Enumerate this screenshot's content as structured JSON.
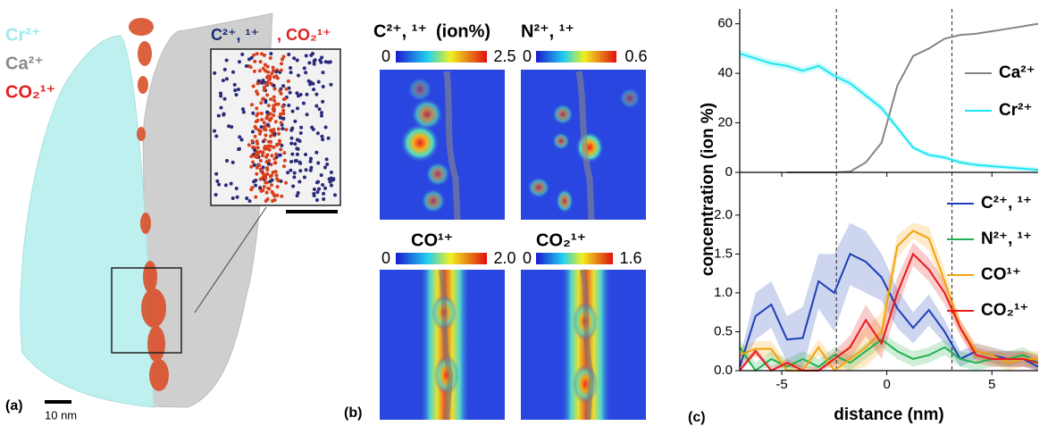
{
  "panel_a": {
    "labels": [
      "Cr²⁺",
      "Ca²⁺",
      "CO₂¹⁺"
    ],
    "inset_title": [
      "C²⁺, ¹⁺",
      ", CO₂¹⁺"
    ],
    "scale_bar": "10 nm",
    "panel_label": "(a)"
  },
  "panel_b": {
    "panel_label": "(b)",
    "unit": "(ion%)",
    "maps": [
      {
        "title": "C²⁺, ¹⁺",
        "cbar": [
          0,
          2.5
        ]
      },
      {
        "title": "N²⁺, ¹⁺",
        "cbar": [
          0,
          0.6
        ]
      },
      {
        "title": "CO¹⁺",
        "cbar": [
          0,
          {
            "value": 2,
            "label": "2.0"
          }
        ]
      },
      {
        "title": "CO₂¹⁺",
        "cbar": [
          0,
          1.6
        ]
      }
    ]
  },
  "chart_data": [
    {
      "type": "line",
      "x": [
        -7,
        -6.25,
        -5.5,
        -4.75,
        -4,
        -3.25,
        -2.5,
        -1.75,
        -1,
        -0.25,
        0.5,
        1.25,
        2,
        2.75,
        3.5,
        4.25,
        5,
        5.75,
        6.5,
        7.2
      ],
      "xlim": [
        -7,
        7.2
      ],
      "xticks": [
        -5,
        0,
        5
      ],
      "ylim": [
        0,
        66
      ],
      "yticks": [
        0,
        20,
        40,
        60
      ],
      "vlines": [
        -2.4,
        3.1
      ],
      "legend": "upper right",
      "series": [
        {
          "name": "Ca²⁺",
          "color": "#858585",
          "values": [
            null,
            null,
            null,
            0,
            0,
            0,
            0,
            0.3,
            4,
            12,
            35,
            47,
            50,
            54,
            55.5,
            56,
            57,
            58,
            59,
            60
          ]
        },
        {
          "name": "Cr²⁺",
          "color": "#1ee6f2",
          "values": [
            48,
            46,
            44,
            43,
            41,
            43,
            39,
            36,
            31,
            26,
            18,
            10,
            7,
            6,
            4,
            3,
            2.5,
            2,
            1.5,
            1
          ],
          "error": [
            1.5,
            1.5,
            1.5,
            1.5,
            1.5,
            1.5,
            1.5,
            1.5,
            1.5,
            1.5,
            1.5,
            1,
            1,
            1,
            1,
            1,
            1,
            1,
            1,
            1
          ]
        }
      ]
    },
    {
      "type": "line",
      "x": [
        -7,
        -6.25,
        -5.5,
        -4.75,
        -4,
        -3.25,
        -2.5,
        -1.75,
        -1,
        -0.25,
        0.5,
        1.25,
        2,
        2.75,
        3.5,
        4.25,
        5,
        5.75,
        6.5,
        7.2
      ],
      "xlim": [
        -7,
        7.2
      ],
      "xticks": [
        -5,
        0,
        5
      ],
      "ylim": [
        0,
        2.55
      ],
      "yticks": [
        {
          "value": 0,
          "label": "0.0"
        },
        {
          "value": 0.5,
          "label": "0.5"
        },
        {
          "value": 1,
          "label": "1.0"
        },
        {
          "value": 1.5,
          "label": "1.5"
        },
        {
          "value": 2,
          "label": "2.0"
        }
      ],
      "vlines": [
        -2.4,
        3.1
      ],
      "xlabel": "distance (nm)",
      "ylabel": "concentration (ion %)",
      "panel_label": "(c)",
      "legend": "center right",
      "series": [
        {
          "name": "C²⁺, ¹⁺",
          "color": "#1c3fb8",
          "values": [
            0.05,
            0.7,
            0.85,
            0.4,
            0.42,
            1.15,
            1.0,
            1.5,
            1.4,
            1.2,
            0.8,
            0.55,
            0.78,
            0.5,
            0.15,
            0.25,
            0.2,
            0.15,
            0.15,
            0.05
          ],
          "error": [
            0.1,
            0.3,
            0.3,
            0.3,
            0.4,
            0.35,
            0.5,
            0.4,
            0.4,
            0.3,
            0.25,
            0.2,
            0.2,
            0.15,
            0.1,
            0.1,
            0.1,
            0.1,
            0.1,
            0.1
          ]
        },
        {
          "name": "N²⁺, ¹⁺",
          "color": "#22b24c",
          "values": [
            0.3,
            0.0,
            0.15,
            0.05,
            0.15,
            0.05,
            0.2,
            0.1,
            0.25,
            0.4,
            0.25,
            0.15,
            0.2,
            0.3,
            0.15,
            0.1,
            0.15,
            0.15,
            0.2,
            0.1
          ],
          "error": [
            0.1,
            0.1,
            0.1,
            0.1,
            0.1,
            0.1,
            0.1,
            0.1,
            0.1,
            0.1,
            0.1,
            0.1,
            0.1,
            0.1,
            0.1,
            0.1,
            0.1,
            0.1,
            0.1,
            0.1
          ]
        },
        {
          "name": "CO¹⁺",
          "color": "#f4a20c",
          "values": [
            0.2,
            0.28,
            0.28,
            0.0,
            0.0,
            0.3,
            0.0,
            0.15,
            0.3,
            0.5,
            1.6,
            1.8,
            1.7,
            1.15,
            0.55,
            0.25,
            0.2,
            0.1,
            0.15,
            0.15
          ],
          "error": [
            0.1,
            0.1,
            0.1,
            0.1,
            0.1,
            0.1,
            0.15,
            0.2,
            0.25,
            0.25,
            0.15,
            0.1,
            0.15,
            0.15,
            0.1,
            0.1,
            0.1,
            0.1,
            0.1,
            0.1
          ]
        },
        {
          "name": "CO₂¹⁺",
          "color": "#e81a1c",
          "values": [
            0.0,
            0.25,
            0.0,
            0.1,
            0.0,
            0.0,
            0.15,
            0.3,
            0.65,
            0.35,
            1.0,
            1.5,
            1.3,
            1.0,
            0.55,
            0.2,
            0.15,
            0.15,
            0.15,
            0.1
          ],
          "error": [
            0.05,
            0.05,
            0.05,
            0.05,
            0.05,
            0.05,
            0.1,
            0.15,
            0.2,
            0.2,
            0.2,
            0.15,
            0.15,
            0.15,
            0.1,
            0.1,
            0.1,
            0.1,
            0.1,
            0.1
          ]
        }
      ]
    }
  ]
}
